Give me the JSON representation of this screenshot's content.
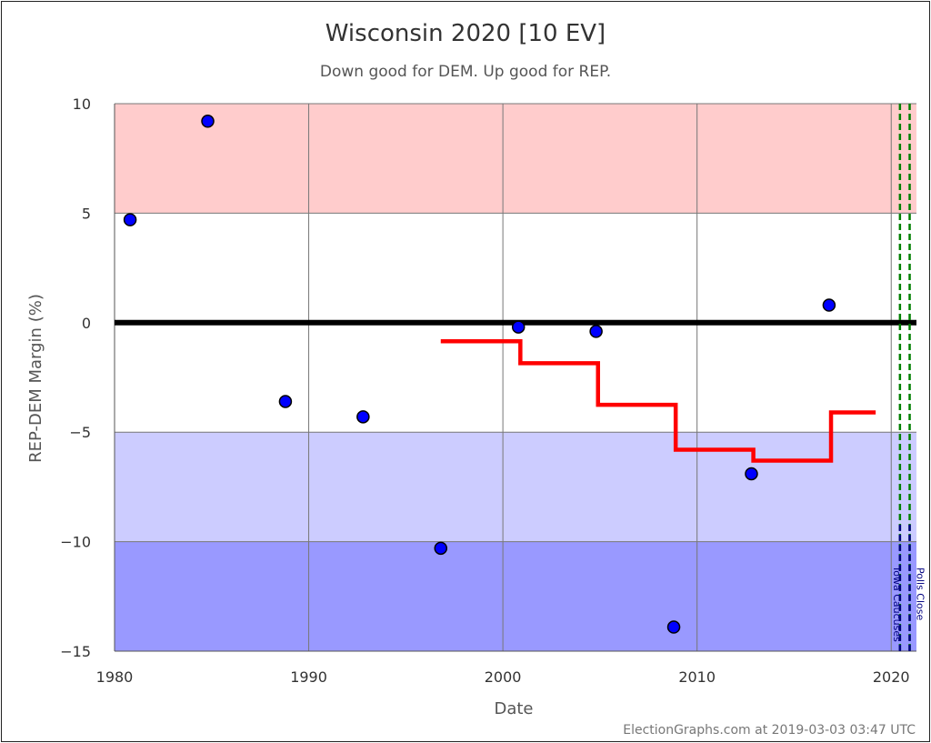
{
  "chart_data": {
    "type": "scatter",
    "title": "Wisconsin 2020 [10 EV]",
    "subtitle": "Down good for DEM. Up good for REP.",
    "xlabel": "Date",
    "ylabel": "REP-DEM Margin (%)",
    "xlim": [
      1980,
      2021.3
    ],
    "ylim": [
      -15,
      10
    ],
    "x_ticks": [
      1980,
      1990,
      2000,
      2010,
      2020
    ],
    "y_ticks": [
      10,
      5,
      0,
      -5,
      -10,
      -15
    ],
    "y_tick_labels": [
      "10",
      "5",
      "0",
      "−5",
      "−10",
      "−15"
    ],
    "grid": true,
    "bands": [
      {
        "from": 5,
        "to": 10,
        "color": "#ffcccc"
      },
      {
        "from": 5,
        "to": -5,
        "color": "#ffffff"
      },
      {
        "from": -5,
        "to": -10,
        "color": "#ccccff"
      },
      {
        "from": -10,
        "to": -15,
        "color": "#9999ff"
      }
    ],
    "zero_line": 0,
    "points": [
      {
        "x": 1980.8,
        "y": 4.7
      },
      {
        "x": 1984.8,
        "y": 9.2
      },
      {
        "x": 1988.8,
        "y": -3.6
      },
      {
        "x": 1992.8,
        "y": -4.3
      },
      {
        "x": 1996.8,
        "y": -10.3
      },
      {
        "x": 2000.8,
        "y": -0.2
      },
      {
        "x": 2004.8,
        "y": -0.4
      },
      {
        "x": 2008.8,
        "y": -13.9
      },
      {
        "x": 2012.8,
        "y": -6.9
      },
      {
        "x": 2016.8,
        "y": 0.8
      }
    ],
    "average_line": [
      {
        "x": 1996.8,
        "y": -0.85
      },
      {
        "x": 2000.9,
        "y": -0.85
      },
      {
        "x": 2000.9,
        "y": -1.85
      },
      {
        "x": 2004.9,
        "y": -1.85
      },
      {
        "x": 2004.9,
        "y": -3.75
      },
      {
        "x": 2008.9,
        "y": -3.75
      },
      {
        "x": 2008.9,
        "y": -5.8
      },
      {
        "x": 2012.9,
        "y": -5.8
      },
      {
        "x": 2012.9,
        "y": -6.3
      },
      {
        "x": 2016.9,
        "y": -6.3
      },
      {
        "x": 2016.9,
        "y": -4.1
      },
      {
        "x": 2019.2,
        "y": -4.1
      }
    ],
    "events": [
      {
        "label": "Iowa Caucuses",
        "x": 2020.45
      },
      {
        "label": "Polls Close",
        "x": 2020.95
      }
    ],
    "credit": "ElectionGraphs.com at 2019-03-03 03:47 UTC",
    "colors": {
      "point": "#0000ff",
      "average": "#ff0000",
      "zero": "#000000",
      "event_green": "#008000",
      "event_blue": "#000080"
    }
  }
}
